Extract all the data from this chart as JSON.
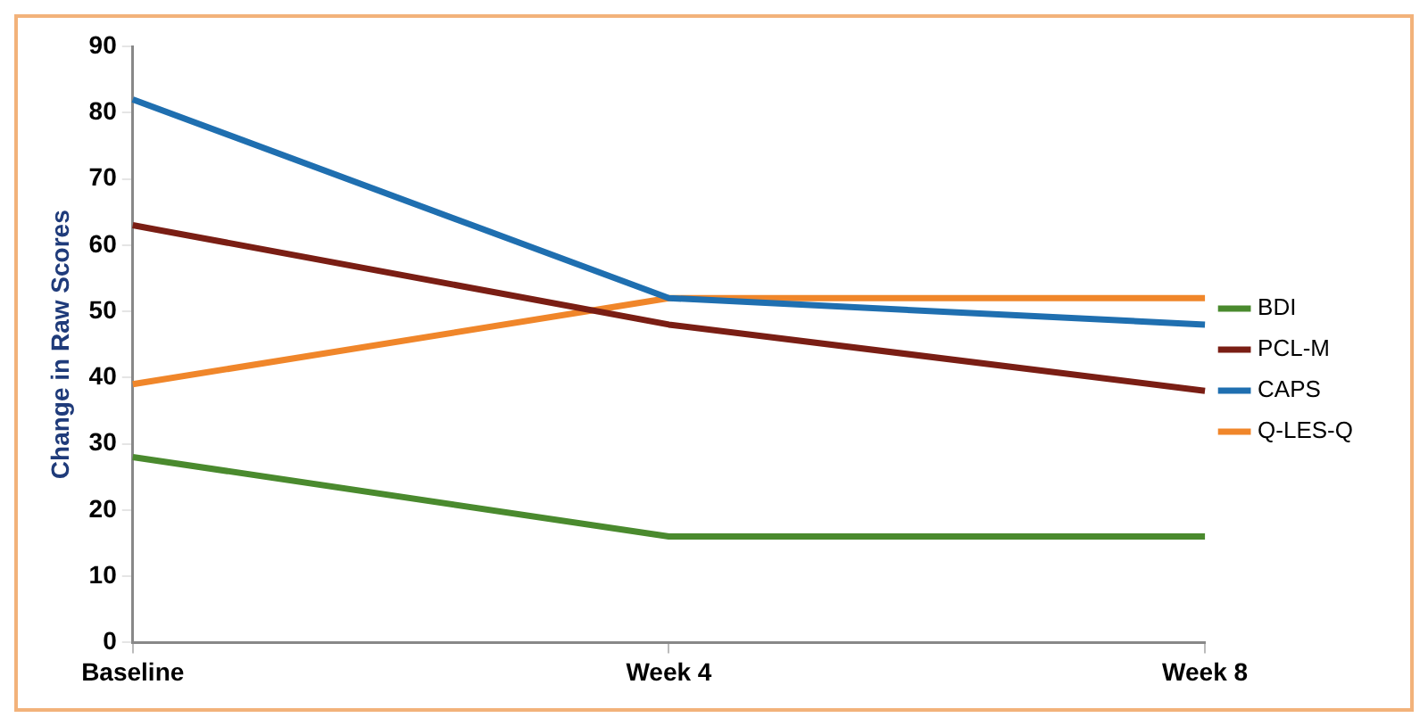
{
  "chart_data": {
    "type": "line",
    "ylabel": "Change in Raw Scores",
    "categories": [
      "Baseline",
      "Week 4",
      "Week 8"
    ],
    "series": [
      {
        "name": "BDI",
        "color": "#4a8a2e",
        "values": [
          28,
          16,
          16
        ]
      },
      {
        "name": "PCL-M",
        "color": "#7a1e14",
        "values": [
          63,
          48,
          38
        ]
      },
      {
        "name": "CAPS",
        "color": "#1f6fb0",
        "values": [
          82,
          52,
          48
        ]
      },
      {
        "name": "Q-LES-Q",
        "color": "#f0862a",
        "values": [
          39,
          52,
          52
        ]
      }
    ],
    "ylim": [
      0,
      90
    ],
    "yticks": [
      0,
      10,
      20,
      30,
      40,
      50,
      60,
      70,
      80,
      90
    ],
    "grid": false,
    "legend": "right",
    "marker": "none",
    "line_style": "solid"
  }
}
